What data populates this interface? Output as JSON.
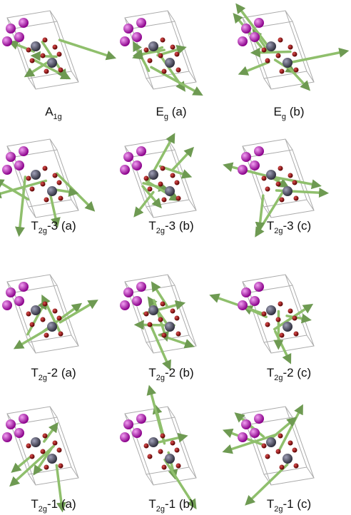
{
  "panels": [
    {
      "base": "A",
      "sub": "1g"
    },
    {
      "base": "E",
      "sub": "g",
      "suffix": " (a)"
    },
    {
      "base": "E",
      "sub": "g",
      "suffix": " (b)"
    },
    {
      "base": "T",
      "sub": "2g",
      "suffix": "-3 (a)"
    },
    {
      "base": "T",
      "sub": "2g",
      "suffix": "-3 (b)"
    },
    {
      "base": "T",
      "sub": "2g",
      "suffix": "-3 (c)"
    },
    {
      "base": "T",
      "sub": "2g",
      "suffix": "-2 (a)"
    },
    {
      "base": "T",
      "sub": "2g",
      "suffix": "-2 (b)"
    },
    {
      "base": "T",
      "sub": "2g",
      "suffix": "-2 (c)"
    },
    {
      "base": "T",
      "sub": "2g",
      "suffix": "-1 (a)"
    },
    {
      "base": "T",
      "sub": "2g",
      "suffix": "-1 (b)"
    },
    {
      "base": "T",
      "sub": "2g",
      "suffix": "-1 (c)"
    }
  ]
}
